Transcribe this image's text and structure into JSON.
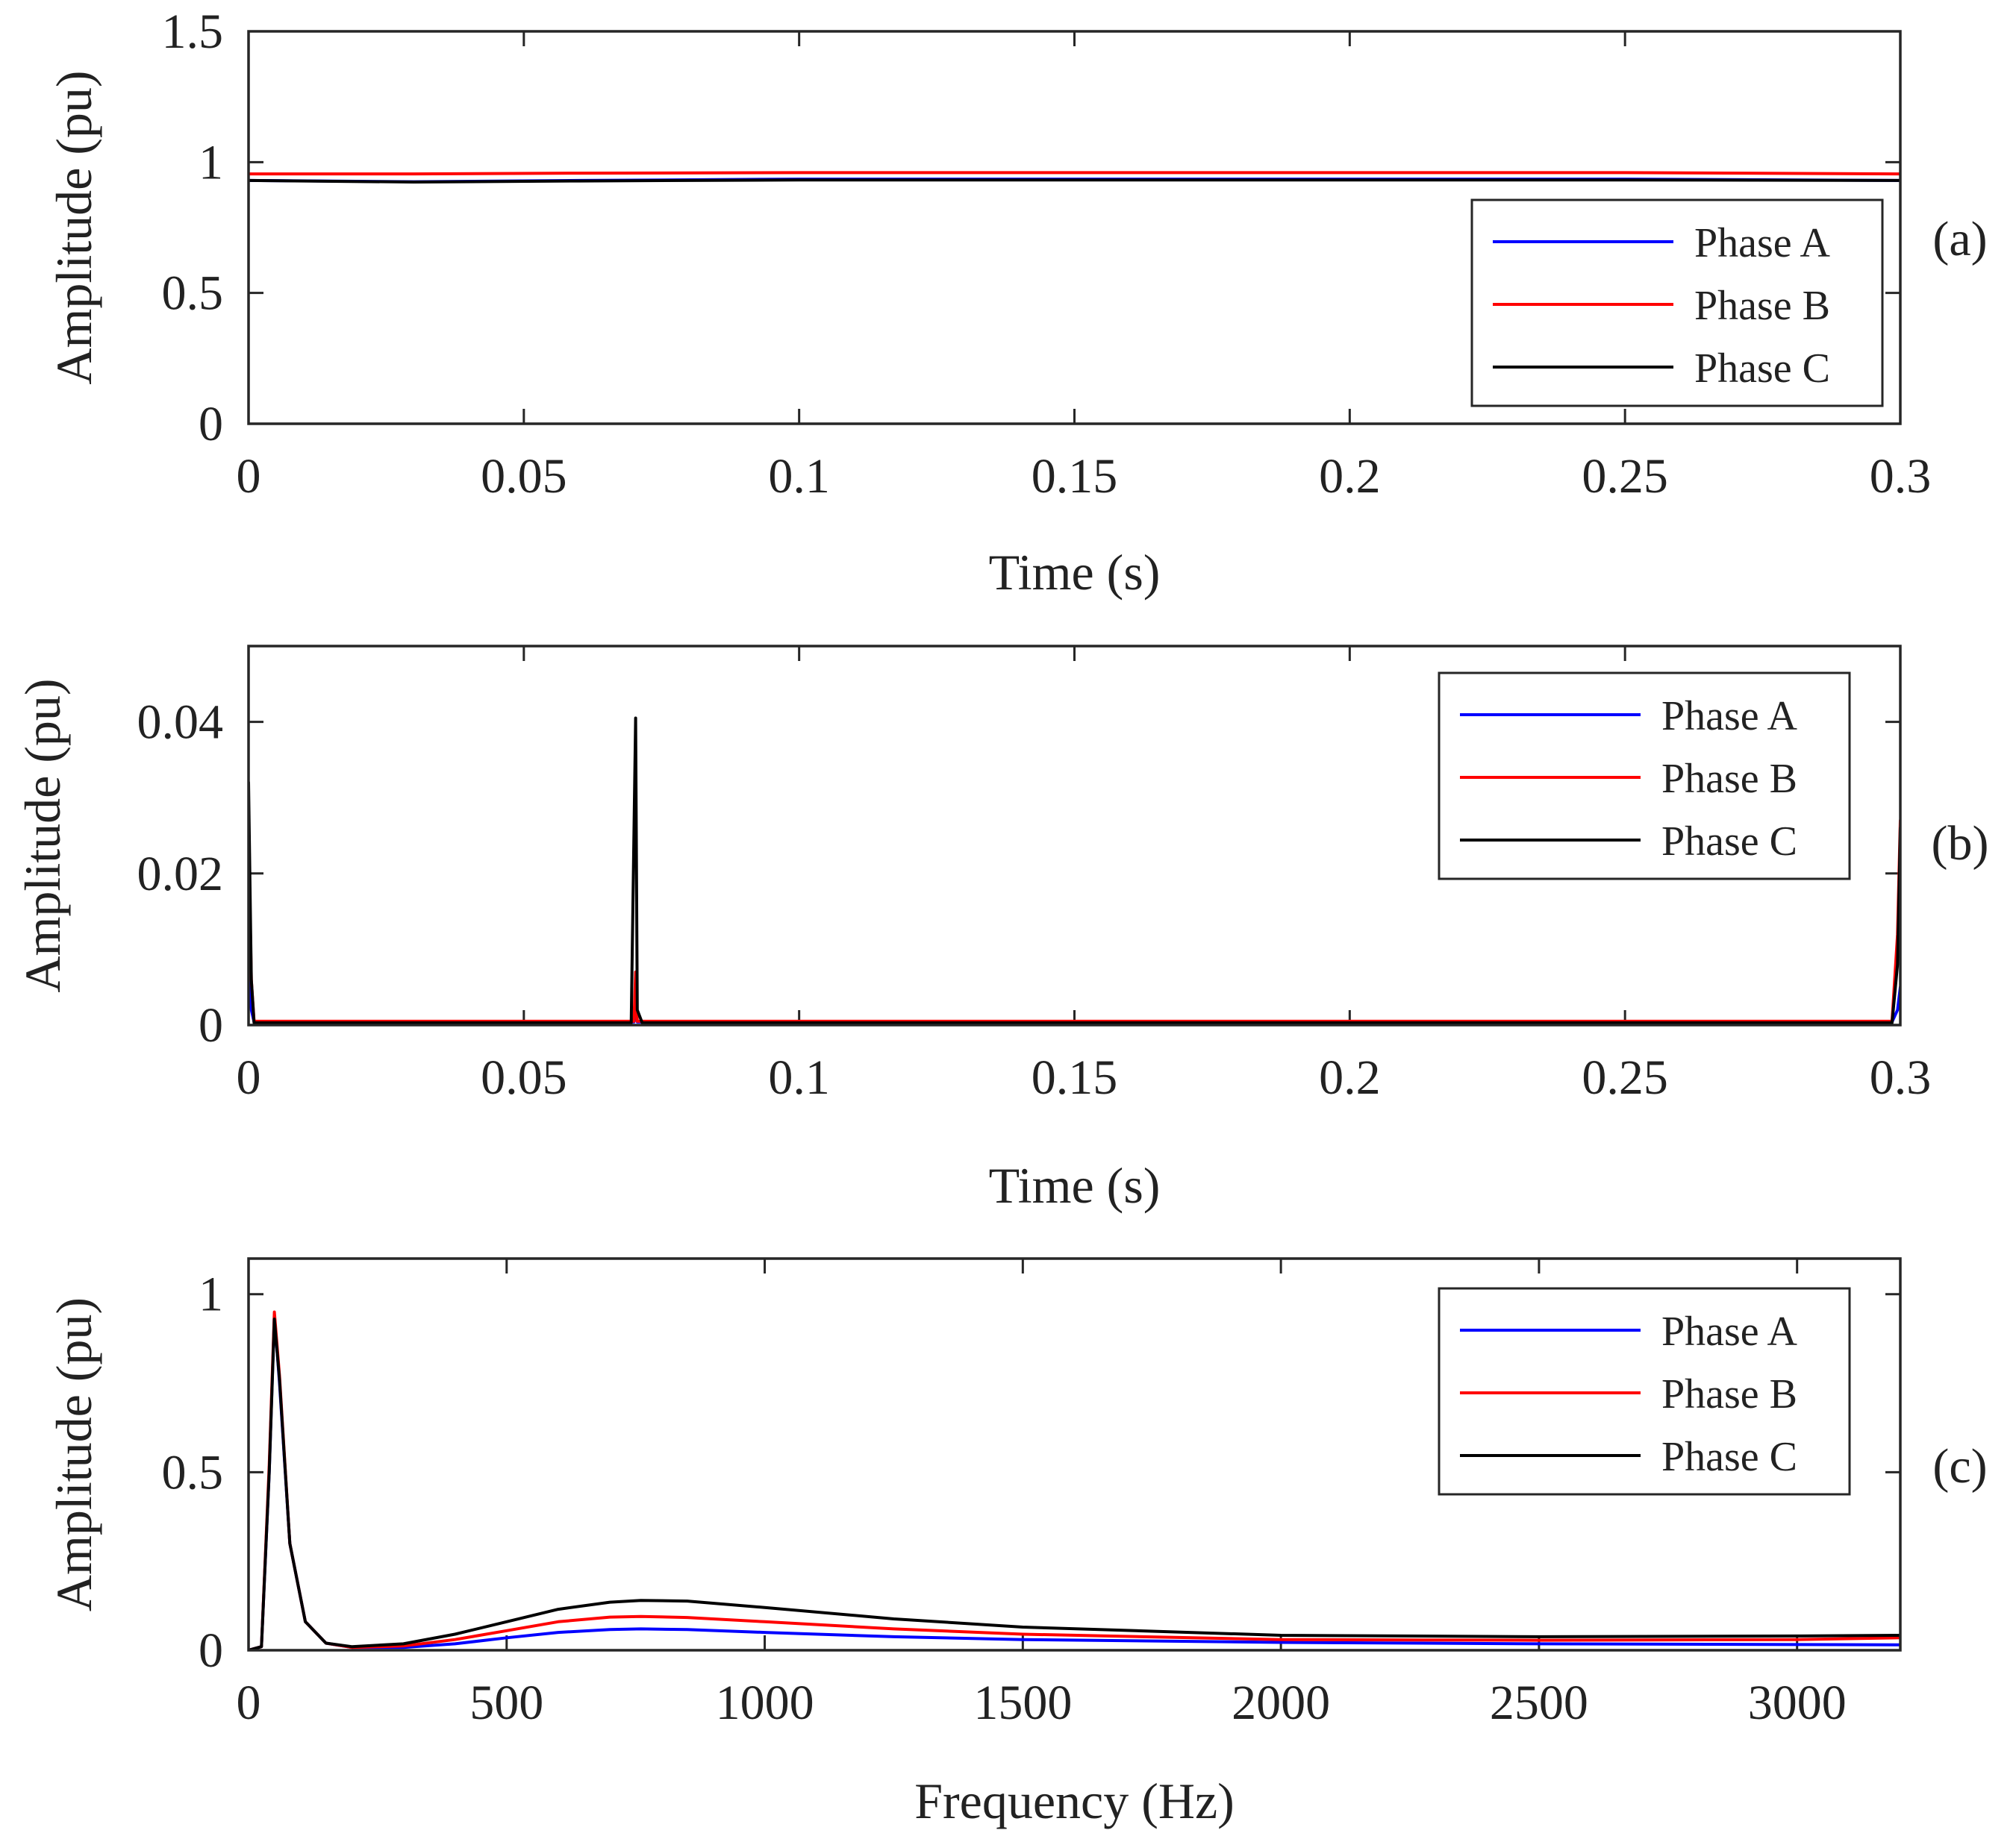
{
  "figure": {
    "colors": {
      "phase_a": "#0000ff",
      "phase_b": "#ff0000",
      "phase_c": "#000000"
    }
  },
  "chart_data": [
    {
      "id": "a",
      "type": "line",
      "panel_label": "(a)",
      "xlabel": "Time (s)",
      "ylabel": "Amplitude (pu)",
      "xlim": [
        0,
        0.3
      ],
      "ylim": [
        0,
        1.5
      ],
      "xticks": [
        0,
        0.05,
        0.1,
        0.15,
        0.2,
        0.25,
        0.3
      ],
      "xtick_labels": [
        "0",
        "0.05",
        "0.1",
        "0.15",
        "0.2",
        "0.25",
        "0.3"
      ],
      "yticks": [
        0,
        0.5,
        1,
        1.5
      ],
      "ytick_labels": [
        "0",
        "0.5",
        "1",
        "1.5"
      ],
      "legend": [
        "Phase A",
        "Phase B",
        "Phase C"
      ],
      "legend_location": "right",
      "series": [
        {
          "name": "Phase A",
          "color": "#0000ff",
          "x": [
            0,
            0.03,
            0.06,
            0.1,
            0.15,
            0.2,
            0.25,
            0.3
          ],
          "y": [
            0.93,
            0.925,
            0.93,
            0.935,
            0.935,
            0.935,
            0.935,
            0.93
          ]
        },
        {
          "name": "Phase B",
          "color": "#ff0000",
          "x": [
            0,
            0.03,
            0.06,
            0.1,
            0.15,
            0.2,
            0.25,
            0.3
          ],
          "y": [
            0.955,
            0.955,
            0.958,
            0.96,
            0.96,
            0.96,
            0.96,
            0.955
          ]
        },
        {
          "name": "Phase C",
          "color": "#000000",
          "x": [
            0,
            0.03,
            0.06,
            0.1,
            0.15,
            0.2,
            0.25,
            0.3
          ],
          "y": [
            0.93,
            0.924,
            0.928,
            0.932,
            0.932,
            0.932,
            0.932,
            0.93
          ]
        }
      ]
    },
    {
      "id": "b",
      "type": "line",
      "panel_label": "(b)",
      "xlabel": "Time (s)",
      "ylabel": "Amplitude (pu)",
      "xlim": [
        0,
        0.3
      ],
      "ylim": [
        0,
        0.05
      ],
      "xticks": [
        0,
        0.05,
        0.1,
        0.15,
        0.2,
        0.25,
        0.3
      ],
      "xtick_labels": [
        "0",
        "0.05",
        "0.1",
        "0.15",
        "0.2",
        "0.25",
        "0.3"
      ],
      "yticks": [
        0,
        0.02,
        0.04
      ],
      "ytick_labels": [
        "0",
        "0.02",
        "0.04"
      ],
      "legend": [
        "Phase A",
        "Phase B",
        "Phase C"
      ],
      "legend_location": "top-right",
      "series": [
        {
          "name": "Phase A",
          "color": "#0000ff",
          "x": [
            0,
            0.0005,
            0.001,
            0.07,
            0.0703,
            0.0706,
            0.071,
            0.2985,
            0.2995,
            0.3
          ],
          "y": [
            0.008,
            0.002,
            0.0004,
            0.0004,
            0.002,
            0.0004,
            0.0004,
            0.0004,
            0.002,
            0.005
          ]
        },
        {
          "name": "Phase B",
          "color": "#ff0000",
          "x": [
            0,
            0.0005,
            0.001,
            0.07,
            0.0703,
            0.0706,
            0.071,
            0.2985,
            0.2995,
            0.3
          ],
          "y": [
            0.025,
            0.006,
            0.0005,
            0.0005,
            0.007,
            0.0005,
            0.0005,
            0.0005,
            0.012,
            0.027
          ]
        },
        {
          "name": "Phase C",
          "color": "#000000",
          "x": [
            0,
            0.0005,
            0.001,
            0.0695,
            0.0703,
            0.0706,
            0.0715,
            0.2985,
            0.2995,
            0.3
          ],
          "y": [
            0.032,
            0.006,
            0.0003,
            0.0003,
            0.0405,
            0.002,
            0.0003,
            0.0003,
            0.008,
            0.026
          ]
        }
      ]
    },
    {
      "id": "c",
      "type": "line",
      "panel_label": "(c)",
      "xlabel": "Frequency (Hz)",
      "ylabel": "Amplitude (pu)",
      "xlim": [
        0,
        3200
      ],
      "ylim": [
        0,
        1.1
      ],
      "xticks": [
        0,
        500,
        1000,
        1500,
        2000,
        2500,
        3000
      ],
      "xtick_labels": [
        "0",
        "500",
        "1000",
        "1500",
        "2000",
        "2500",
        "3000"
      ],
      "yticks": [
        0,
        0.5,
        1
      ],
      "ytick_labels": [
        "0",
        "0.5",
        "1"
      ],
      "legend": [
        "Phase A",
        "Phase B",
        "Phase C"
      ],
      "legend_location": "top-right",
      "series": [
        {
          "name": "Phase A",
          "color": "#0000ff",
          "x": [
            0,
            25,
            40,
            50,
            60,
            80,
            110,
            150,
            200,
            300,
            400,
            500,
            600,
            700,
            760,
            850,
            1000,
            1250,
            1500,
            2000,
            2500,
            3000,
            3200
          ],
          "y": [
            0,
            0.01,
            0.5,
            0.94,
            0.75,
            0.3,
            0.08,
            0.02,
            0.008,
            0.008,
            0.018,
            0.035,
            0.05,
            0.058,
            0.06,
            0.058,
            0.05,
            0.038,
            0.03,
            0.022,
            0.018,
            0.016,
            0.015
          ]
        },
        {
          "name": "Phase B",
          "color": "#ff0000",
          "x": [
            0,
            25,
            40,
            50,
            60,
            80,
            110,
            150,
            200,
            300,
            400,
            500,
            600,
            700,
            760,
            850,
            1000,
            1250,
            1500,
            2000,
            2500,
            3000,
            3200
          ],
          "y": [
            0,
            0.01,
            0.52,
            0.95,
            0.77,
            0.3,
            0.08,
            0.02,
            0.008,
            0.012,
            0.03,
            0.055,
            0.08,
            0.093,
            0.095,
            0.092,
            0.08,
            0.06,
            0.045,
            0.03,
            0.028,
            0.03,
            0.035
          ]
        },
        {
          "name": "Phase C",
          "color": "#000000",
          "x": [
            0,
            25,
            40,
            50,
            60,
            80,
            110,
            150,
            200,
            300,
            400,
            500,
            600,
            700,
            760,
            850,
            1000,
            1250,
            1500,
            2000,
            2500,
            3000,
            3200
          ],
          "y": [
            0,
            0.01,
            0.5,
            0.93,
            0.76,
            0.3,
            0.08,
            0.02,
            0.01,
            0.018,
            0.045,
            0.08,
            0.115,
            0.135,
            0.14,
            0.138,
            0.12,
            0.088,
            0.065,
            0.042,
            0.038,
            0.04,
            0.042
          ]
        }
      ]
    }
  ]
}
